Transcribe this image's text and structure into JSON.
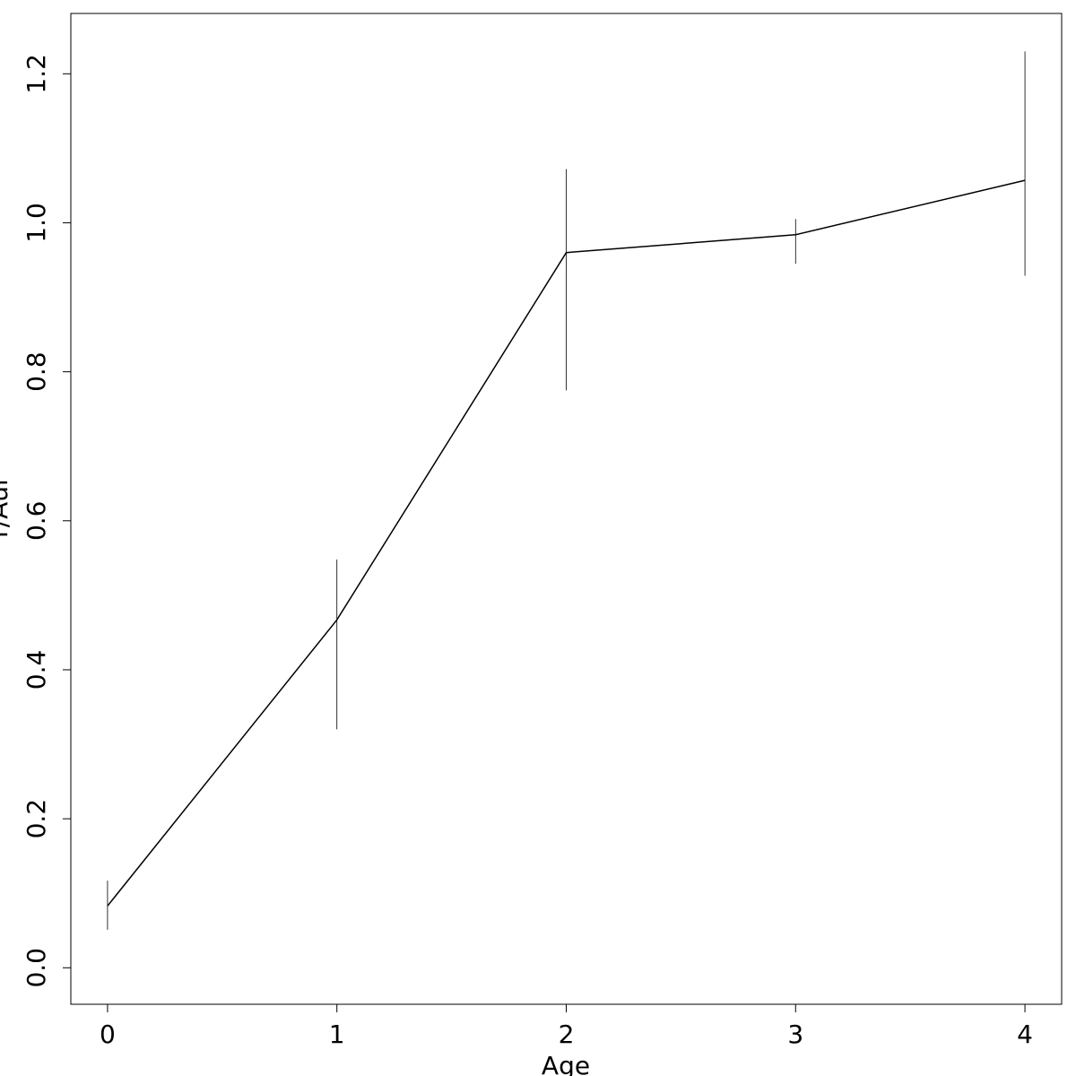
{
  "chart_data": {
    "type": "line",
    "x_label": "Age",
    "y_label": "r/Aul",
    "x": [
      0,
      1,
      2,
      3,
      4
    ],
    "values": [
      0.083,
      0.467,
      0.96,
      0.984,
      1.057
    ],
    "error_plus": [
      0.034,
      0.081,
      0.112,
      0.021,
      0.173
    ],
    "error_minus": [
      0.032,
      0.147,
      0.185,
      0.039,
      0.128
    ],
    "color": "#000000",
    "xlim": [
      -0.16,
      4.16
    ],
    "ylim": [
      -0.049,
      1.281
    ],
    "xticks": [
      0,
      1,
      2,
      3,
      4
    ],
    "yticks": [
      {
        "value": 0,
        "label": "0.0"
      },
      0.2,
      0.4,
      0.6,
      0.8,
      {
        "value": 1,
        "label": "1.0"
      },
      1.2
    ]
  }
}
